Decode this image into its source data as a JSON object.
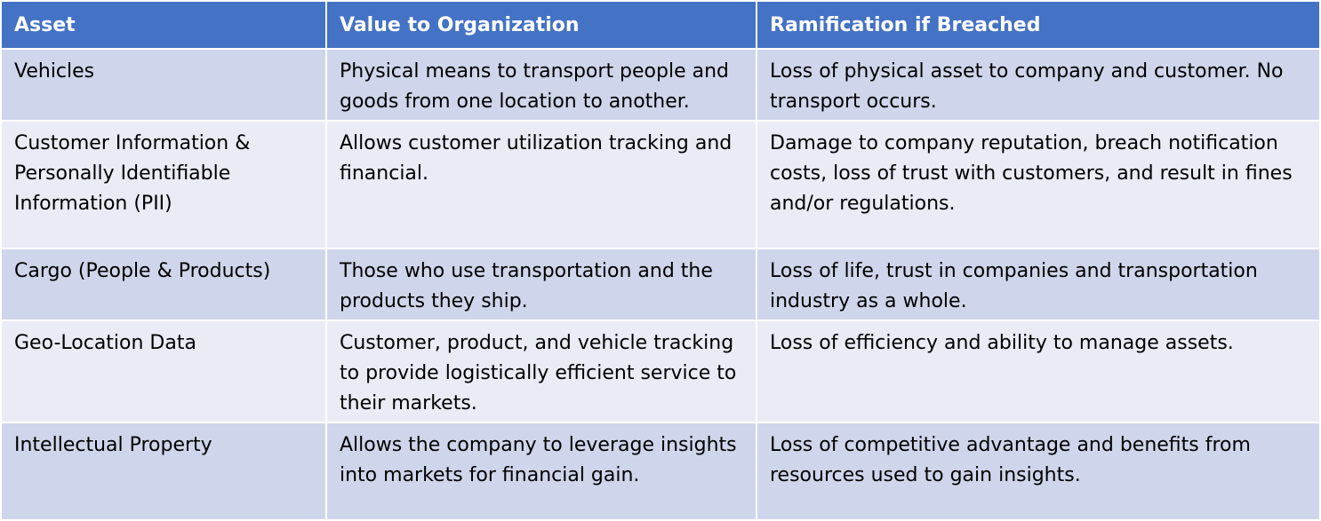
{
  "table": {
    "headers": [
      "Asset",
      "Value to Organization",
      "Ramification if Breached"
    ],
    "rows": [
      [
        "Vehicles",
        "Physical means to transport people and goods from one location to another.",
        "Loss of physical asset to company and customer. No transport occurs."
      ],
      [
        "Customer Information & Personally Identifiable Information (PII)",
        "Allows customer utilization tracking and financial.",
        "Damage to company reputation, breach notification costs, loss of trust with customers, and result in fines and/or regulations."
      ],
      [
        "Cargo (People & Products)",
        "Those who use transportation and the products they ship.",
        "Loss of life, trust in companies and transportation industry as a whole."
      ],
      [
        "Geo-Location Data",
        "Customer, product, and vehicle tracking to provide logistically efficient service to their markets.",
        "Loss of efficiency and ability to manage assets."
      ],
      [
        "Intellectual Property",
        "Allows the company to leverage insights into markets for financial gain.",
        "Loss of competitive advantage and benefits from resources used to gain insights."
      ]
    ]
  },
  "colors": {
    "header_bg": "#4472c4",
    "row_odd_bg": "#cfd5ea",
    "row_even_bg": "#e9ebf5"
  }
}
